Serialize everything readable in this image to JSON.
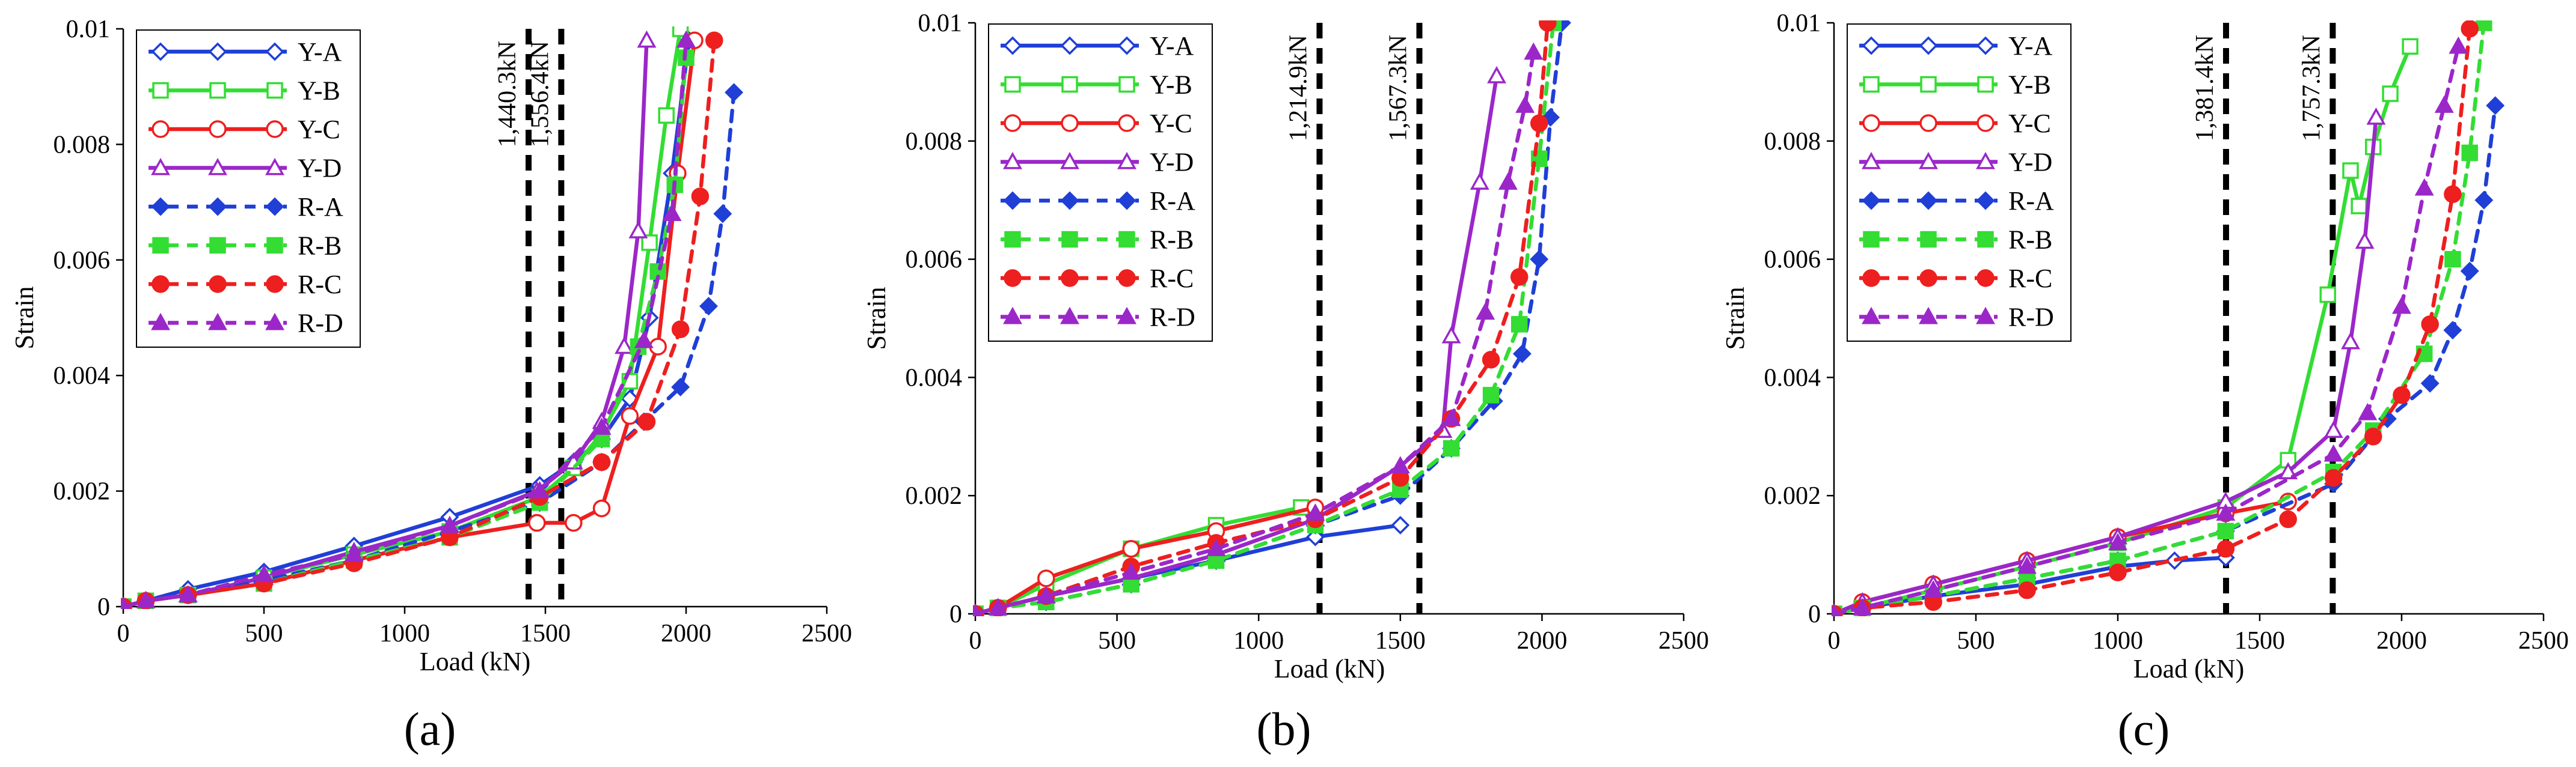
{
  "series_styles": {
    "Y-A": {
      "color": "#1f3fd6",
      "marker": "diamond",
      "filled": false,
      "dashed": false
    },
    "Y-B": {
      "color": "#33dd33",
      "marker": "square",
      "filled": false,
      "dashed": false
    },
    "Y-C": {
      "color": "#ee1f1f",
      "marker": "circle",
      "filled": false,
      "dashed": false
    },
    "Y-D": {
      "color": "#9b27c9",
      "marker": "triangle",
      "filled": false,
      "dashed": false
    },
    "R-A": {
      "color": "#1f3fd6",
      "marker": "diamond",
      "filled": true,
      "dashed": true
    },
    "R-B": {
      "color": "#33dd33",
      "marker": "square",
      "filled": true,
      "dashed": true
    },
    "R-C": {
      "color": "#ee1f1f",
      "marker": "circle",
      "filled": true,
      "dashed": true
    },
    "R-D": {
      "color": "#9b27c9",
      "marker": "triangle",
      "filled": true,
      "dashed": true
    }
  },
  "chart_data": [
    {
      "type": "line",
      "panel_label": "(a)",
      "xlabel": "Load (kN)",
      "ylabel": "Strain",
      "xlim": [
        0,
        2500
      ],
      "ylim": [
        0,
        0.01
      ],
      "xticks": [
        "0",
        "500",
        "1000",
        "1500",
        "2000",
        "2500"
      ],
      "yticks": [
        "0",
        "0.002",
        "0.004",
        "0.006",
        "0.008",
        "0.01"
      ],
      "legend": "top-left",
      "vlines": [
        {
          "x": 1440.3,
          "label": "1,440.3kN"
        },
        {
          "x": 1556.4,
          "label": "1,556.4kN"
        }
      ],
      "series": [
        {
          "name": "Y-A",
          "x": [
            0,
            80,
            230,
            500,
            820,
            1160,
            1480,
            1600,
            1700,
            1800,
            1870,
            1950,
            2010
          ],
          "y": [
            0,
            0.0001,
            0.0003,
            0.0006,
            0.00105,
            0.00155,
            0.0021,
            0.0025,
            0.0029,
            0.0036,
            0.005,
            0.0075,
            0.0098
          ]
        },
        {
          "name": "Y-B",
          "x": [
            0,
            80,
            230,
            500,
            820,
            1160,
            1480,
            1600,
            1700,
            1800,
            1870,
            1930,
            1980
          ],
          "y": [
            0,
            0.0001,
            0.0002,
            0.0005,
            0.0009,
            0.0013,
            0.0019,
            0.0024,
            0.003,
            0.0039,
            0.0063,
            0.0085,
            0.01
          ]
        },
        {
          "name": "Y-C",
          "x": [
            0,
            80,
            230,
            500,
            820,
            1160,
            1470,
            1600,
            1700,
            1800,
            1900,
            1970,
            2030
          ],
          "y": [
            0,
            0.0001,
            0.0002,
            0.0004,
            0.0008,
            0.0012,
            0.00145,
            0.00145,
            0.0017,
            0.0033,
            0.0045,
            0.0075,
            0.0098
          ]
        },
        {
          "name": "Y-D",
          "x": [
            0,
            80,
            230,
            500,
            820,
            1160,
            1470,
            1600,
            1700,
            1780,
            1830,
            1860
          ],
          "y": [
            0,
            0.0001,
            0.0002,
            0.0005,
            0.00095,
            0.0014,
            0.002,
            0.0025,
            0.0032,
            0.0045,
            0.0065,
            0.0098
          ]
        },
        {
          "name": "R-A",
          "x": [
            0,
            80,
            230,
            500,
            820,
            1160,
            1480,
            1700,
            1850,
            1980,
            2080,
            2130,
            2170
          ],
          "y": [
            0,
            0.0001,
            0.0002,
            0.00045,
            0.0008,
            0.0013,
            0.0018,
            0.0025,
            0.0032,
            0.0038,
            0.0052,
            0.0068,
            0.0089
          ]
        },
        {
          "name": "R-B",
          "x": [
            0,
            80,
            230,
            500,
            820,
            1160,
            1480,
            1700,
            1830,
            1900,
            1960,
            2000
          ],
          "y": [
            0,
            0.0001,
            0.0002,
            0.0004,
            0.0008,
            0.0012,
            0.0018,
            0.0029,
            0.0045,
            0.0058,
            0.0073,
            0.0095
          ]
        },
        {
          "name": "R-C",
          "x": [
            0,
            80,
            230,
            500,
            820,
            1160,
            1480,
            1700,
            1860,
            1980,
            2050,
            2100
          ],
          "y": [
            0,
            0.0001,
            0.0002,
            0.0004,
            0.00075,
            0.0012,
            0.0019,
            0.0025,
            0.0032,
            0.0048,
            0.0071,
            0.0098
          ]
        },
        {
          "name": "R-D",
          "x": [
            0,
            80,
            230,
            500,
            820,
            1160,
            1480,
            1700,
            1850,
            1950,
            2000
          ],
          "y": [
            0,
            0.0001,
            0.0002,
            0.00055,
            0.0009,
            0.0014,
            0.002,
            0.0031,
            0.0046,
            0.0068,
            0.0098
          ]
        }
      ]
    },
    {
      "type": "line",
      "panel_label": "(b)",
      "xlabel": "Load (kN)",
      "ylabel": "Strain",
      "xlim": [
        0,
        2500
      ],
      "ylim": [
        0,
        0.01
      ],
      "xticks": [
        "0",
        "500",
        "1000",
        "1500",
        "2000",
        "2500"
      ],
      "yticks": [
        "0",
        "0.002",
        "0.004",
        "0.006",
        "0.008",
        "0.01"
      ],
      "legend": "top-left",
      "vlines": [
        {
          "x": 1214.9,
          "label": "1,214.9kN"
        },
        {
          "x": 1567.3,
          "label": "1,567.3kN"
        }
      ],
      "series": [
        {
          "name": "Y-A",
          "x": [
            0,
            80,
            250,
            550,
            850,
            1200,
            1500
          ],
          "y": [
            0,
            0.0001,
            0.0003,
            0.0006,
            0.0009,
            0.0013,
            0.0015
          ]
        },
        {
          "name": "Y-B",
          "x": [
            0,
            80,
            250,
            550,
            850,
            1150
          ],
          "y": [
            0,
            0.0001,
            0.0005,
            0.0011,
            0.0015,
            0.0018
          ]
        },
        {
          "name": "Y-C",
          "x": [
            0,
            80,
            250,
            550,
            850,
            1200
          ],
          "y": [
            0,
            0.0001,
            0.0006,
            0.0011,
            0.0014,
            0.0018
          ]
        },
        {
          "name": "Y-D",
          "x": [
            0,
            80,
            250,
            550,
            850,
            1200,
            1500,
            1650,
            1680,
            1780,
            1840
          ],
          "y": [
            0,
            0.0001,
            0.0003,
            0.0006,
            0.001,
            0.0016,
            0.0025,
            0.0031,
            0.0047,
            0.0073,
            0.0091
          ]
        },
        {
          "name": "R-A",
          "x": [
            0,
            80,
            250,
            550,
            850,
            1200,
            1500,
            1680,
            1830,
            1930,
            1990,
            2030,
            2070
          ],
          "y": [
            0,
            0.0001,
            0.0002,
            0.0005,
            0.0009,
            0.0015,
            0.002,
            0.0028,
            0.0036,
            0.0044,
            0.006,
            0.0084,
            0.01
          ]
        },
        {
          "name": "R-B",
          "x": [
            0,
            80,
            250,
            550,
            850,
            1200,
            1500,
            1680,
            1820,
            1920,
            1990,
            2040
          ],
          "y": [
            0,
            0.0001,
            0.0002,
            0.0005,
            0.0009,
            0.0015,
            0.0021,
            0.0028,
            0.0037,
            0.0049,
            0.0077,
            0.01
          ]
        },
        {
          "name": "R-C",
          "x": [
            0,
            80,
            250,
            550,
            850,
            1200,
            1500,
            1680,
            1820,
            1920,
            1990,
            2020
          ],
          "y": [
            0,
            0.0001,
            0.0003,
            0.0008,
            0.0012,
            0.0016,
            0.0023,
            0.0033,
            0.0043,
            0.0057,
            0.0083,
            0.01
          ]
        },
        {
          "name": "R-D",
          "x": [
            0,
            80,
            250,
            550,
            850,
            1200,
            1500,
            1680,
            1800,
            1880,
            1940,
            1970
          ],
          "y": [
            0,
            0.0001,
            0.0003,
            0.0007,
            0.0011,
            0.0017,
            0.0025,
            0.0033,
            0.0051,
            0.0073,
            0.0086,
            0.0095
          ]
        }
      ]
    },
    {
      "type": "line",
      "panel_label": "(c)",
      "xlabel": "Load (kN)",
      "ylabel": "Strain",
      "xlim": [
        0,
        2500
      ],
      "ylim": [
        0,
        0.01
      ],
      "xticks": [
        "0",
        "500",
        "1000",
        "1500",
        "2000",
        "2500"
      ],
      "yticks": [
        "0",
        "0.002",
        "0.004",
        "0.006",
        "0.008",
        "0.01"
      ],
      "legend": "top-left",
      "vlines": [
        {
          "x": 1381.4,
          "label": "1,381.4kN"
        },
        {
          "x": 1757.3,
          "label": "1,757.3kN"
        }
      ],
      "series": [
        {
          "name": "Y-A",
          "x": [
            0,
            100,
            350,
            680,
            1000,
            1200,
            1380
          ],
          "y": [
            0,
            0.0001,
            0.0003,
            0.0005,
            0.0008,
            0.0009,
            0.00095
          ]
        },
        {
          "name": "Y-B",
          "x": [
            0,
            100,
            350,
            680,
            1000,
            1380,
            1600,
            1740,
            1820,
            1850,
            1900,
            1960,
            2030
          ],
          "y": [
            0,
            0.0001,
            0.0004,
            0.0008,
            0.0012,
            0.0018,
            0.0026,
            0.0054,
            0.0075,
            0.0069,
            0.0079,
            0.0088,
            0.0096
          ]
        },
        {
          "name": "Y-C",
          "x": [
            0,
            100,
            350,
            680,
            1000,
            1380,
            1600
          ],
          "y": [
            0,
            0.0002,
            0.0005,
            0.0009,
            0.0013,
            0.0017,
            0.0019
          ]
        },
        {
          "name": "Y-D",
          "x": [
            0,
            100,
            350,
            680,
            1000,
            1380,
            1600,
            1760,
            1820,
            1870,
            1910
          ],
          "y": [
            0,
            0.0002,
            0.0005,
            0.0009,
            0.0013,
            0.0019,
            0.0024,
            0.0031,
            0.0046,
            0.0063,
            0.0084
          ]
        },
        {
          "name": "R-A",
          "x": [
            0,
            100,
            350,
            680,
            1000,
            1380,
            1760,
            1950,
            2100,
            2180,
            2240,
            2290,
            2330
          ],
          "y": [
            0,
            0.0001,
            0.0003,
            0.0006,
            0.0009,
            0.0014,
            0.0022,
            0.0033,
            0.0039,
            0.0048,
            0.0058,
            0.007,
            0.0086
          ]
        },
        {
          "name": "R-B",
          "x": [
            0,
            100,
            350,
            680,
            1000,
            1380,
            1760,
            1900,
            2080,
            2180,
            2240,
            2290
          ],
          "y": [
            0,
            0.0001,
            0.0003,
            0.0006,
            0.0009,
            0.0014,
            0.0024,
            0.0031,
            0.0044,
            0.006,
            0.0078,
            0.01
          ]
        },
        {
          "name": "R-C",
          "x": [
            0,
            100,
            350,
            680,
            1000,
            1380,
            1600,
            1760,
            1900,
            2000,
            2100,
            2180,
            2240
          ],
          "y": [
            0,
            0.0001,
            0.0002,
            0.0004,
            0.0007,
            0.0011,
            0.0016,
            0.0023,
            0.003,
            0.0037,
            0.0049,
            0.0071,
            0.0099
          ]
        },
        {
          "name": "R-D",
          "x": [
            0,
            100,
            350,
            680,
            1000,
            1380,
            1760,
            1880,
            2000,
            2080,
            2150,
            2200
          ],
          "y": [
            0,
            0.0001,
            0.0004,
            0.0008,
            0.0012,
            0.0017,
            0.0027,
            0.0034,
            0.0052,
            0.0072,
            0.0086,
            0.0096
          ]
        }
      ]
    }
  ]
}
